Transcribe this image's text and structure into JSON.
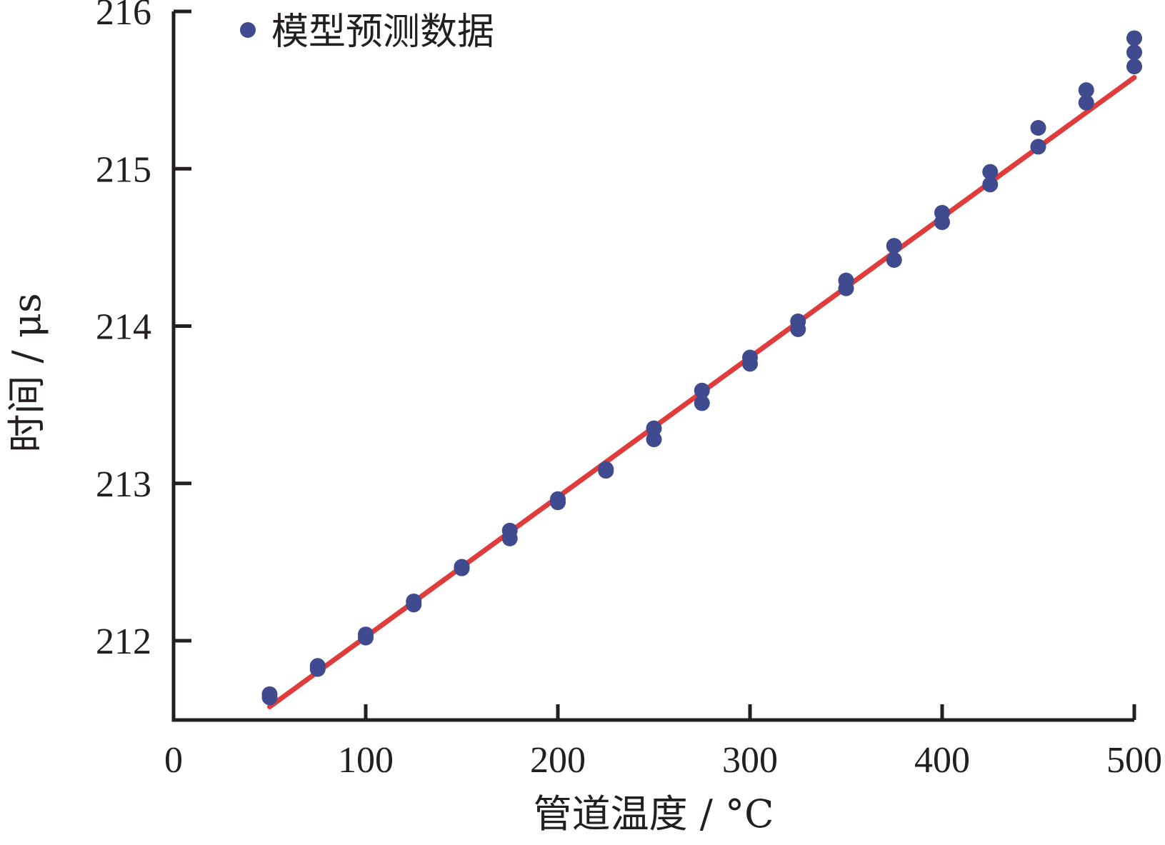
{
  "chart_data": {
    "type": "scatter",
    "xlabel": "管道温度 / °C",
    "ylabel": "时间 / μs",
    "xlim": [
      0,
      500
    ],
    "ylim": [
      211.5,
      216
    ],
    "xticks": [
      0,
      100,
      200,
      300,
      400,
      500
    ],
    "yticks": [
      212,
      213,
      214,
      215,
      216
    ],
    "xtick_labels": [
      "0",
      "100",
      "200",
      "300",
      "400",
      "500"
    ],
    "ytick_labels": [
      "212",
      "213",
      "214",
      "215",
      "216"
    ],
    "grid": false,
    "legend_position": "top-left",
    "series": [
      {
        "name": "模型预测数据",
        "kind": "scatter",
        "color": "#3f4a8f",
        "points": [
          [
            50,
            211.66
          ],
          [
            50,
            211.64
          ],
          [
            75,
            211.84
          ],
          [
            75,
            211.82
          ],
          [
            100,
            212.04
          ],
          [
            100,
            212.02
          ],
          [
            125,
            212.25
          ],
          [
            125,
            212.23
          ],
          [
            150,
            212.47
          ],
          [
            150,
            212.46
          ],
          [
            175,
            212.7
          ],
          [
            175,
            212.65
          ],
          [
            200,
            212.9
          ],
          [
            200,
            212.88
          ],
          [
            225,
            213.09
          ],
          [
            225,
            213.08
          ],
          [
            250,
            213.35
          ],
          [
            250,
            213.28
          ],
          [
            275,
            213.59
          ],
          [
            275,
            213.51
          ],
          [
            300,
            213.8
          ],
          [
            300,
            213.76
          ],
          [
            325,
            214.03
          ],
          [
            325,
            213.98
          ],
          [
            350,
            214.29
          ],
          [
            350,
            214.24
          ],
          [
            375,
            214.51
          ],
          [
            375,
            214.42
          ],
          [
            400,
            214.72
          ],
          [
            400,
            214.66
          ],
          [
            425,
            214.98
          ],
          [
            425,
            214.9
          ],
          [
            450,
            215.26
          ],
          [
            450,
            215.14
          ],
          [
            475,
            215.5
          ],
          [
            475,
            215.42
          ],
          [
            500,
            215.83
          ],
          [
            500,
            215.74
          ],
          [
            500,
            215.65
          ]
        ]
      },
      {
        "kind": "line",
        "color": "#e03c3c",
        "points": [
          [
            50,
            211.58
          ],
          [
            500,
            215.58
          ]
        ]
      }
    ]
  }
}
